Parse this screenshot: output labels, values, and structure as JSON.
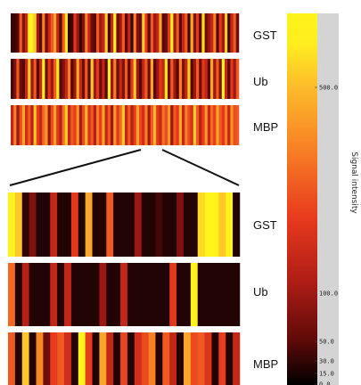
{
  "colors": {
    "colormap": [
      "#000000",
      "#5e0a08",
      "#b01d16",
      "#e83a1d",
      "#f77a24",
      "#fdbb2b",
      "#ffee1f",
      "#fff41a"
    ],
    "colorbar_background": "#d4d4d4",
    "zoom_line": "#111111"
  },
  "chart_data": {
    "type": "heatmap",
    "title": "",
    "rows": [
      "GST",
      "Ub",
      "MBP"
    ],
    "colorbar": {
      "label": "Signal intensity",
      "ticks": [
        {
          "value": 500.0,
          "label": "500.0"
        },
        {
          "value": 100.0,
          "label": "100.0"
        },
        {
          "value": 50.0,
          "label": "50.0"
        },
        {
          "value": 30.0,
          "label": "30.0"
        },
        {
          "value": 15.0,
          "label": "15.0"
        },
        {
          "value": 0.0,
          "label": "0.0"
        }
      ],
      "range": [
        0,
        600
      ]
    },
    "overview": {
      "panels": [
        {
          "name": "GST",
          "values": [
            50,
            50,
            80,
            300,
            120,
            200,
            600,
            550,
            450,
            150,
            80,
            350,
            100,
            200,
            300,
            400,
            200,
            80,
            300,
            500,
            40,
            60,
            250,
            150,
            50,
            120,
            350,
            200,
            100,
            80,
            300,
            150,
            200,
            450,
            60,
            200,
            550,
            100,
            150,
            300,
            80,
            200,
            50,
            350,
            120,
            100,
            450,
            250,
            80,
            300,
            150,
            200,
            400,
            80,
            100,
            250,
            550,
            150,
            300,
            80,
            200,
            300,
            60,
            400,
            120,
            250,
            80,
            500,
            100,
            150,
            200,
            350,
            80,
            250,
            150,
            450,
            60,
            200,
            300,
            100
          ]
        },
        {
          "name": "Ub",
          "values": [
            60,
            120,
            300,
            100,
            80,
            200,
            450,
            150,
            300,
            80,
            200,
            550,
            100,
            250,
            150,
            300,
            500,
            80,
            120,
            200,
            350,
            80,
            150,
            400,
            200,
            100,
            300,
            80,
            450,
            150,
            250,
            100,
            200,
            80,
            550,
            150,
            350,
            100,
            200,
            120,
            300,
            80,
            250,
            450,
            150,
            80,
            200,
            300,
            100,
            400,
            80,
            150,
            250,
            200,
            500,
            100,
            300,
            150,
            80,
            350,
            120,
            200,
            450,
            80,
            150,
            300,
            100,
            250,
            200,
            80,
            400,
            150,
            300,
            120,
            550,
            200,
            80,
            250,
            150,
            300
          ]
        },
        {
          "name": "MBP",
          "values": [
            200,
            350,
            150,
            280,
            400,
            220,
            300,
            180,
            450,
            260,
            200,
            320,
            380,
            150,
            280,
            400,
            250,
            180,
            330,
            450,
            200,
            300,
            260,
            380,
            160,
            280,
            420,
            230,
            300,
            180,
            350,
            260,
            400,
            200,
            300,
            150,
            380,
            250,
            320,
            450,
            200,
            300,
            180,
            260,
            400,
            280,
            220,
            350,
            160,
            300,
            420,
            250,
            200,
            330,
            280,
            380,
            150,
            300,
            250,
            400,
            200,
            350,
            280,
            230,
            450,
            300,
            180,
            260,
            380,
            200,
            320,
            260,
            400,
            300,
            250,
            350,
            200,
            380,
            280,
            300
          ]
        }
      ]
    },
    "zoom": {
      "panels": [
        {
          "name": "GST",
          "values": [
            560,
            450,
            40,
            120,
            30,
            30,
            200,
            30,
            30,
            250,
            30,
            400,
            30,
            30,
            300,
            30,
            30,
            30,
            150,
            30,
            30,
            60,
            30,
            30,
            120,
            30,
            30,
            480,
            600,
            600,
            450,
            560,
            30
          ]
        },
        {
          "name": "Ub",
          "values": [
            320,
            30,
            180,
            30,
            30,
            30,
            200,
            30,
            200,
            30,
            30,
            30,
            30,
            150,
            30,
            30,
            200,
            30,
            30,
            30,
            30,
            30,
            30,
            250,
            30,
            30,
            580,
            30,
            30,
            30,
            30,
            30,
            30
          ]
        },
        {
          "name": "MBP",
          "values": [
            300,
            30,
            450,
            30,
            360,
            100,
            260,
            300,
            220,
            30,
            600,
            260,
            30,
            400,
            200,
            30,
            270,
            30,
            220,
            280,
            350,
            30,
            300,
            200,
            30,
            400,
            280,
            300,
            240,
            30,
            260,
            30,
            200
          ]
        }
      ]
    }
  }
}
